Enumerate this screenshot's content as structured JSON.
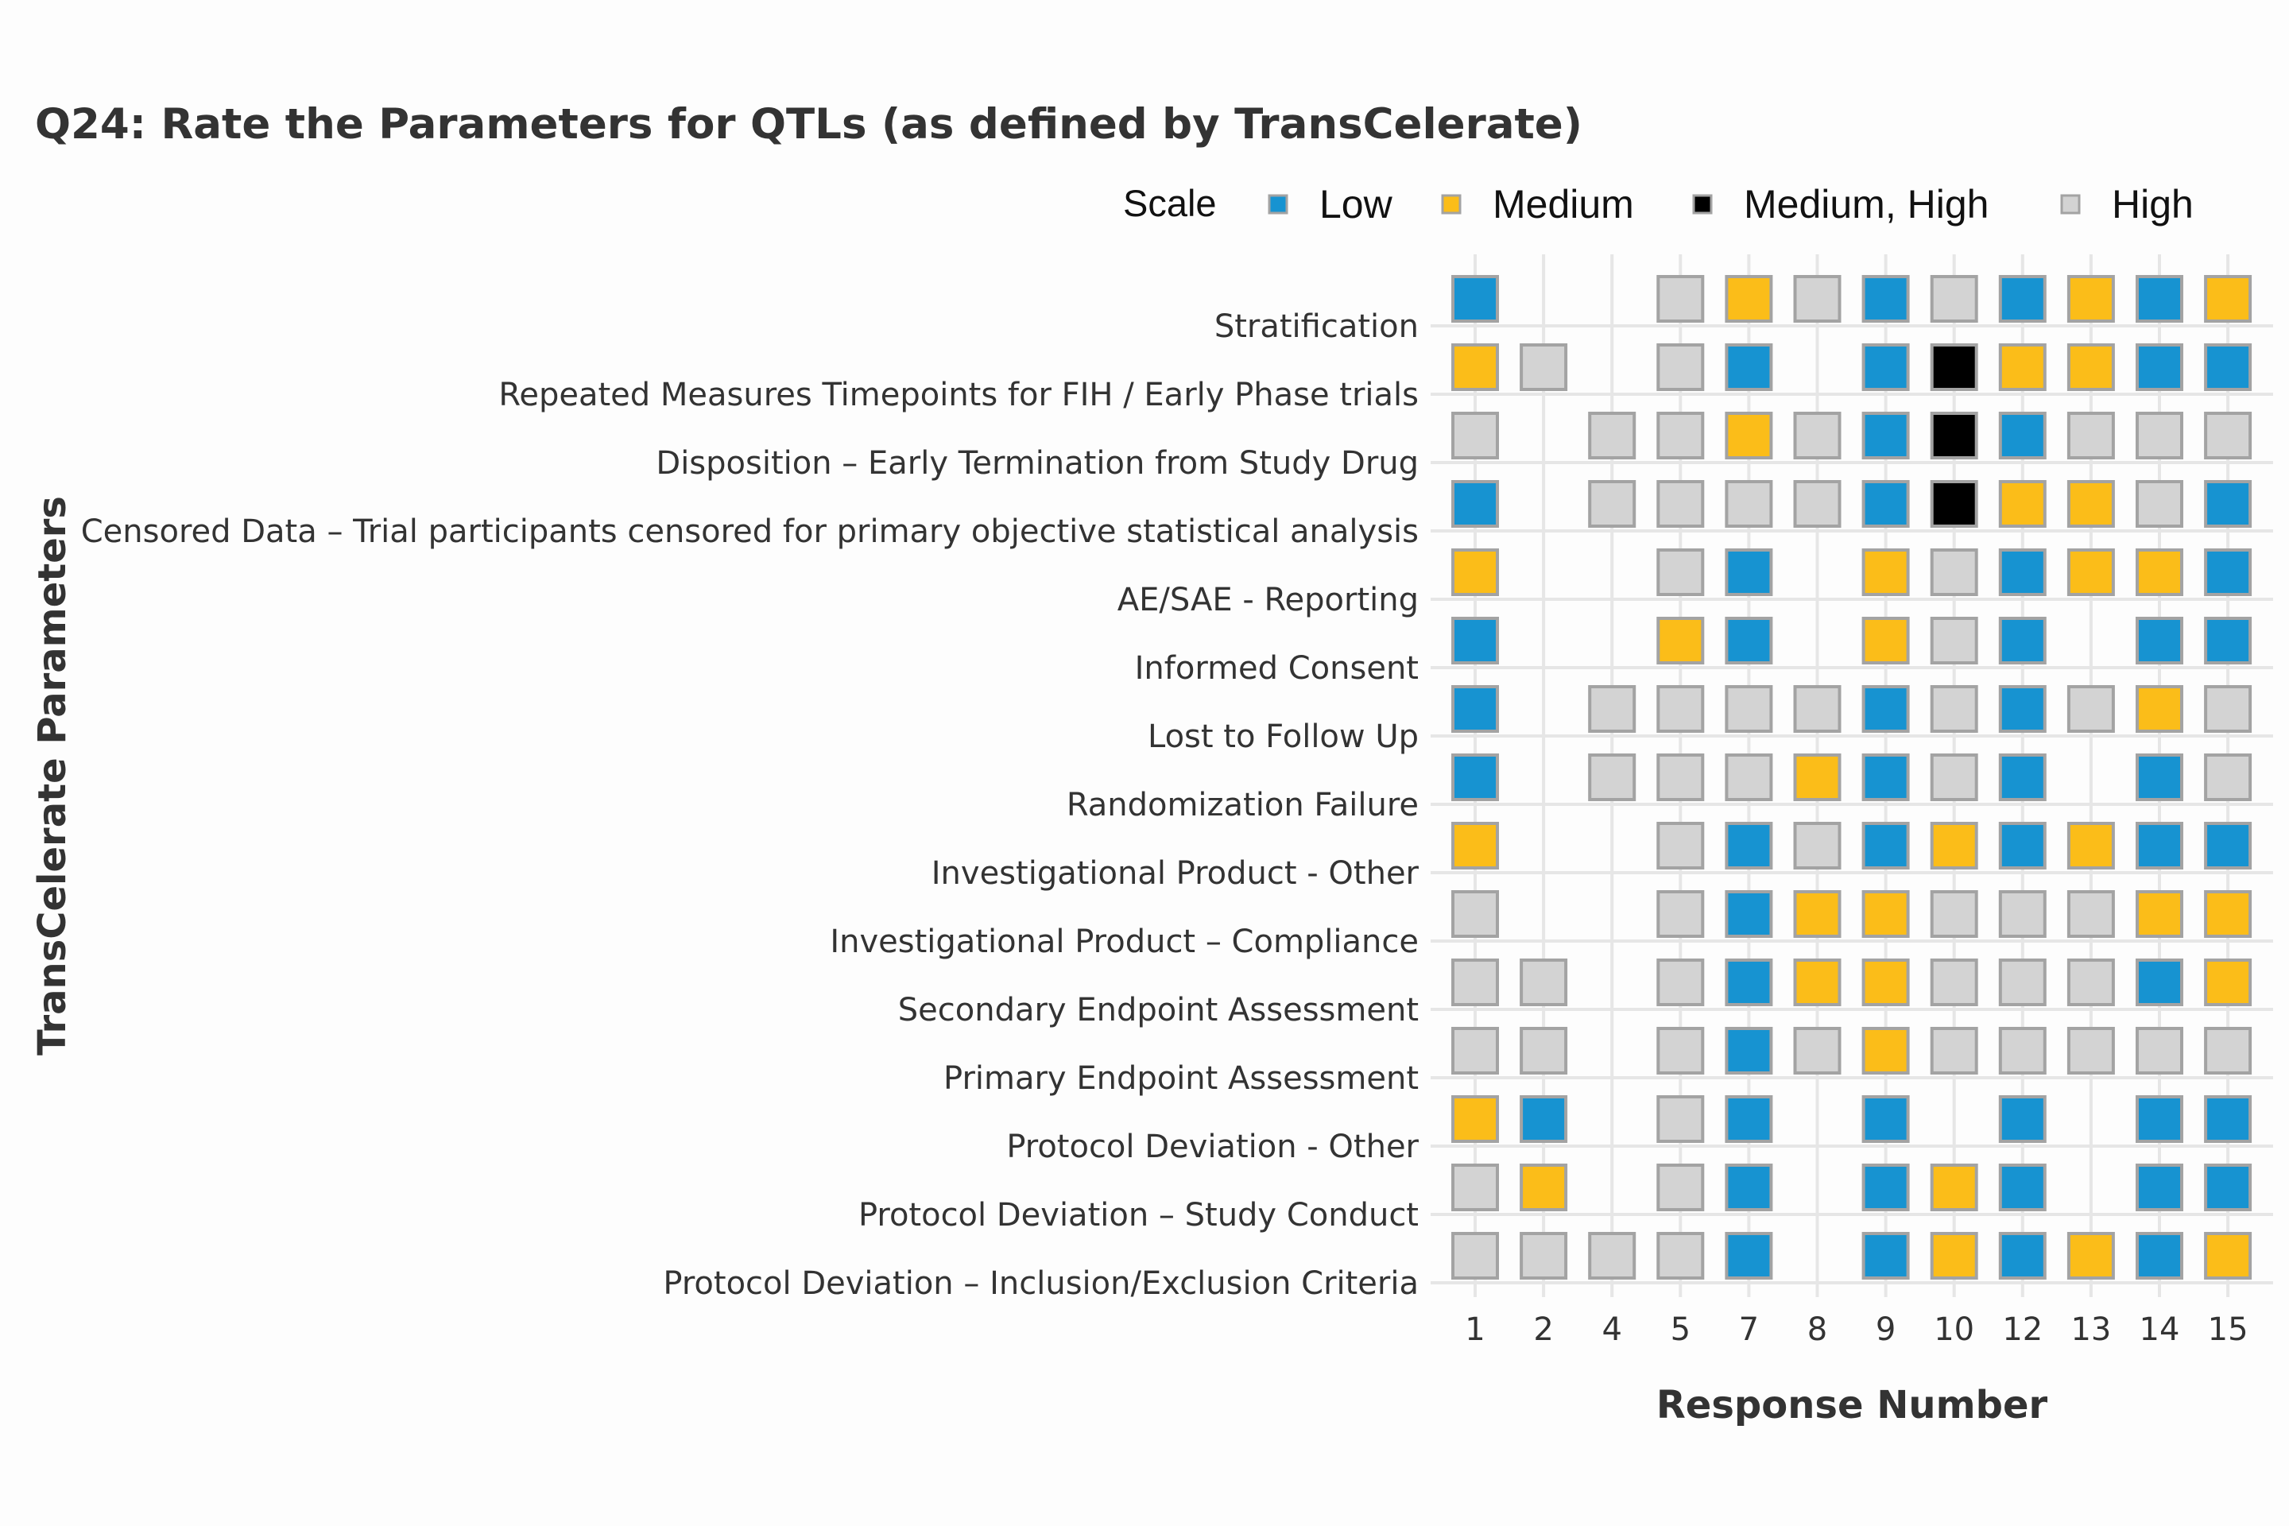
{
  "chart_data": {
    "type": "heatmap",
    "title": "Q24: Rate the Parameters for QTLs (as defined by TransCelerate)",
    "xlabel": "Response Number",
    "ylabel": "TransCelerate Parameters",
    "legend": {
      "title": "Scale",
      "position": "top-right",
      "items": [
        {
          "key": "L",
          "label": "Low",
          "color": "#1793d1"
        },
        {
          "key": "M",
          "label": "Medium",
          "color": "#fbbd19"
        },
        {
          "key": "MH",
          "label": "Medium, High",
          "color": "#000000"
        },
        {
          "key": "H",
          "label": "High",
          "color": "#d3d3d3"
        }
      ]
    },
    "x": [
      "1",
      "2",
      "4",
      "5",
      "7",
      "8",
      "9",
      "10",
      "12",
      "13",
      "14",
      "15"
    ],
    "rows": [
      {
        "label": "Stratification",
        "values": [
          "L",
          null,
          null,
          "H",
          "M",
          "H",
          "L",
          "H",
          "L",
          "M",
          "L",
          "M"
        ]
      },
      {
        "label": "Repeated Measures Timepoints for FIH / Early Phase trials",
        "values": [
          "M",
          "H",
          null,
          "H",
          "L",
          null,
          "L",
          "MH",
          "M",
          "M",
          "L",
          "L"
        ]
      },
      {
        "label": "Disposition – Early Termination from Study Drug",
        "values": [
          "H",
          null,
          "H",
          "H",
          "M",
          "H",
          "L",
          "MH",
          "L",
          "H",
          "H",
          "H"
        ]
      },
      {
        "label": "Censored Data – Trial participants censored for primary objective statistical analysis",
        "values": [
          "L",
          null,
          "H",
          "H",
          "H",
          "H",
          "L",
          "MH",
          "M",
          "M",
          "H",
          "L"
        ]
      },
      {
        "label": "AE/SAE - Reporting",
        "values": [
          "M",
          null,
          null,
          "H",
          "L",
          null,
          "M",
          "H",
          "L",
          "M",
          "M",
          "L"
        ]
      },
      {
        "label": "Informed Consent",
        "values": [
          "L",
          null,
          null,
          "M",
          "L",
          null,
          "M",
          "H",
          "L",
          null,
          "L",
          "L"
        ]
      },
      {
        "label": "Lost to Follow Up",
        "values": [
          "L",
          null,
          "H",
          "H",
          "H",
          "H",
          "L",
          "H",
          "L",
          "H",
          "M",
          "H"
        ]
      },
      {
        "label": "Randomization Failure",
        "values": [
          "L",
          null,
          "H",
          "H",
          "H",
          "M",
          "L",
          "H",
          "L",
          null,
          "L",
          "H"
        ]
      },
      {
        "label": "Investigational Product - Other",
        "values": [
          "M",
          null,
          null,
          "H",
          "L",
          "H",
          "L",
          "M",
          "L",
          "M",
          "L",
          "L"
        ]
      },
      {
        "label": "Investigational Product – Compliance",
        "values": [
          "H",
          null,
          null,
          "H",
          "L",
          "M",
          "M",
          "H",
          "H",
          "H",
          "M",
          "M"
        ]
      },
      {
        "label": "Secondary Endpoint Assessment",
        "values": [
          "H",
          "H",
          null,
          "H",
          "L",
          "M",
          "M",
          "H",
          "H",
          "H",
          "L",
          "M"
        ]
      },
      {
        "label": "Primary Endpoint Assessment",
        "values": [
          "H",
          "H",
          null,
          "H",
          "L",
          "H",
          "M",
          "H",
          "H",
          "H",
          "H",
          "H"
        ]
      },
      {
        "label": "Protocol Deviation - Other",
        "values": [
          "M",
          "L",
          null,
          "H",
          "L",
          null,
          "L",
          null,
          "L",
          null,
          "L",
          "L"
        ]
      },
      {
        "label": "Protocol Deviation – Study Conduct",
        "values": [
          "H",
          "M",
          null,
          "H",
          "L",
          null,
          "L",
          "M",
          "L",
          null,
          "L",
          "L"
        ]
      },
      {
        "label": "Protocol Deviation – Inclusion/Exclusion Criteria",
        "values": [
          "H",
          "H",
          "H",
          "H",
          "L",
          null,
          "L",
          "M",
          "L",
          "M",
          "L",
          "M"
        ]
      }
    ]
  }
}
